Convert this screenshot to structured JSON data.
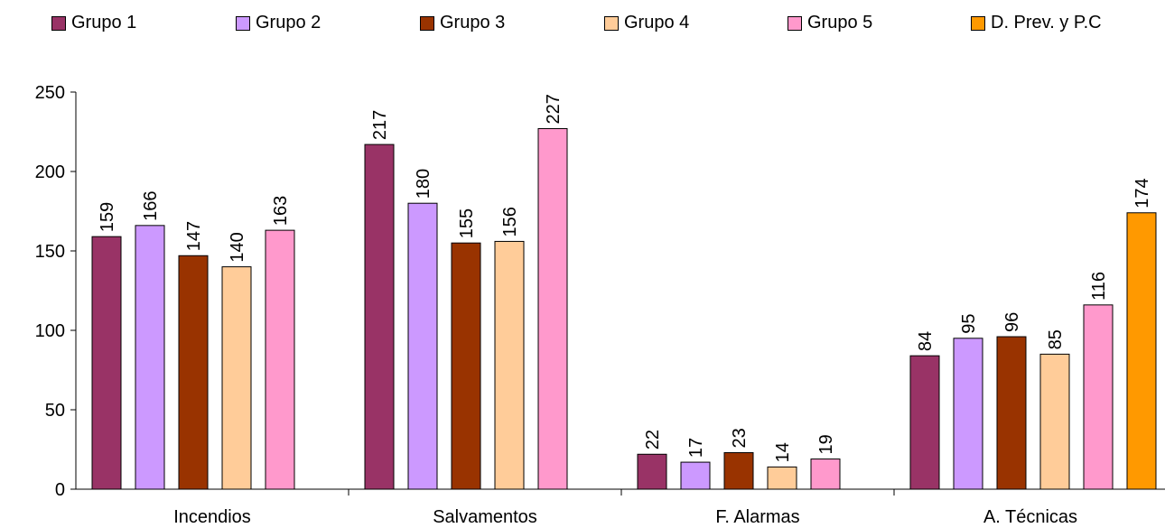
{
  "chart_data": {
    "type": "bar",
    "categories": [
      "Incendios",
      "Salvamentos",
      "F. Alarmas",
      "A. Técnicas"
    ],
    "series": [
      {
        "name": "Grupo 1",
        "color": "#993366",
        "values": [
          159,
          217,
          22,
          84
        ]
      },
      {
        "name": "Grupo 2",
        "color": "#CC99FF",
        "values": [
          166,
          180,
          17,
          95
        ]
      },
      {
        "name": "Grupo 3",
        "color": "#993300",
        "values": [
          147,
          155,
          23,
          96
        ]
      },
      {
        "name": "Grupo 4",
        "color": "#FFCC99",
        "values": [
          140,
          156,
          14,
          85
        ]
      },
      {
        "name": "Grupo 5",
        "color": "#FF99CC",
        "values": [
          163,
          227,
          19,
          116
        ]
      },
      {
        "name": "D. Prev. y P.C",
        "color": "#FF9900",
        "values": [
          null,
          null,
          null,
          174
        ]
      }
    ],
    "y_ticks": [
      "0",
      "50",
      "100",
      "150",
      "200",
      "250"
    ],
    "ylim": [
      0,
      250
    ],
    "legend_position": "top",
    "grid": false
  }
}
